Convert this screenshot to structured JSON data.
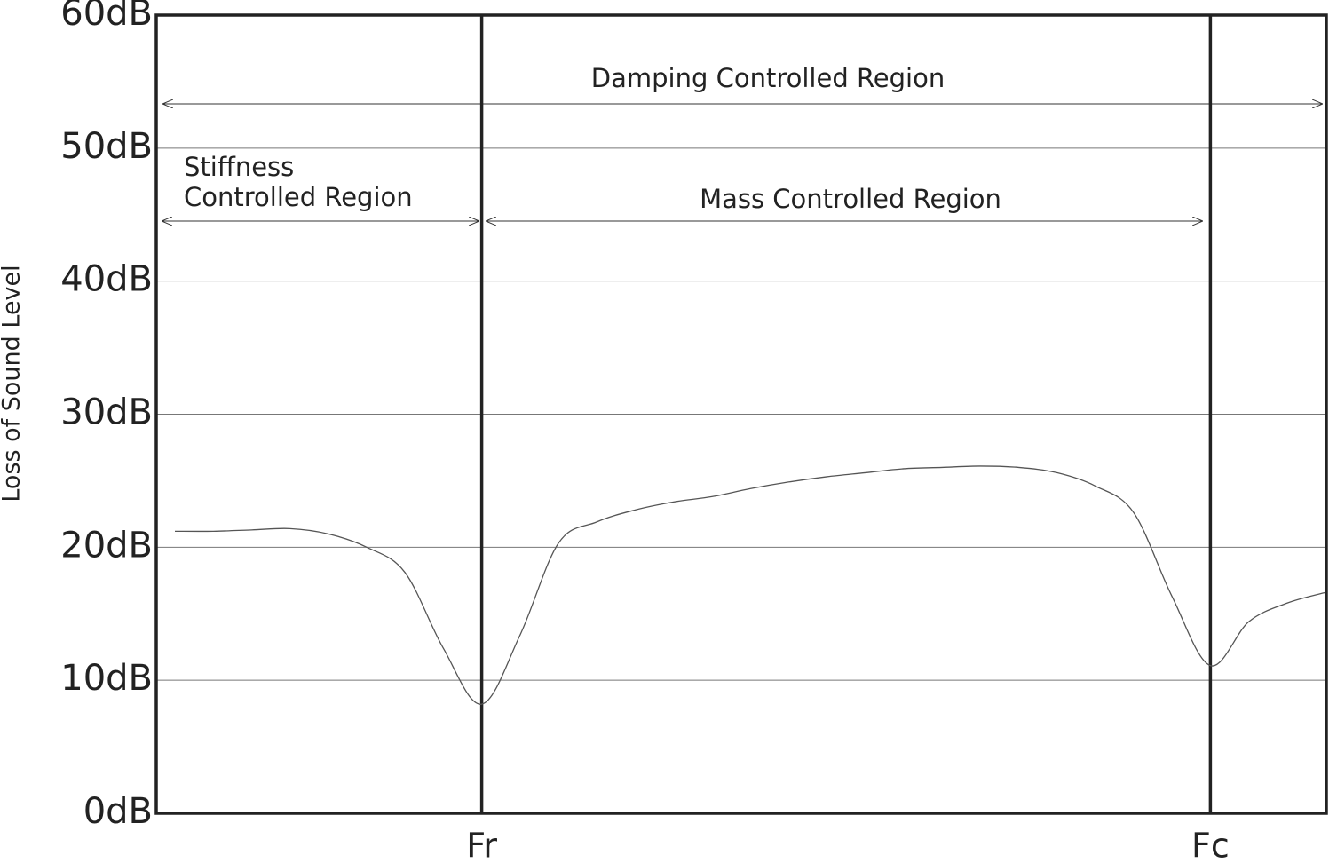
{
  "chart_data": {
    "type": "line",
    "y_label": "Loss of Sound Level",
    "categories": [
      null,
      null,
      null,
      null,
      null,
      null,
      null,
      null,
      "Fr",
      null,
      null,
      null,
      null,
      null,
      null,
      null,
      null,
      null,
      null,
      null,
      null,
      null,
      null,
      null,
      null,
      null,
      null,
      "Fc",
      null,
      null,
      null
    ],
    "series": [
      {
        "color": "#555555",
        "values": [
          21.2,
          21.2,
          21.3,
          21.4,
          21.0,
          20.0,
          18.1,
          12.4,
          8.2,
          13.4,
          20.3,
          21.9,
          22.8,
          23.4,
          23.8,
          24.4,
          24.9,
          25.3,
          25.6,
          25.9,
          26.0,
          26.1,
          26.0,
          25.6,
          24.6,
          22.6,
          16.3,
          11.1,
          14.4,
          15.8,
          16.6
        ]
      }
    ],
    "ylim": [
      0,
      60
    ],
    "yticks": [
      {
        "value": 0,
        "label": "0dB"
      },
      {
        "value": 10,
        "label": "10dB"
      },
      {
        "value": 20,
        "label": "20dB"
      },
      {
        "value": 30,
        "label": "30dB"
      },
      {
        "value": 40,
        "label": "40dB"
      },
      {
        "value": 50,
        "label": "50dB"
      },
      {
        "value": 60,
        "label": "60dB"
      }
    ],
    "grid": true,
    "annotations": {
      "damping": "Damping Controlled Region",
      "stiffness": [
        "Stiffness",
        "Controlled Region"
      ],
      "mass": "Mass Controlled Region"
    }
  }
}
